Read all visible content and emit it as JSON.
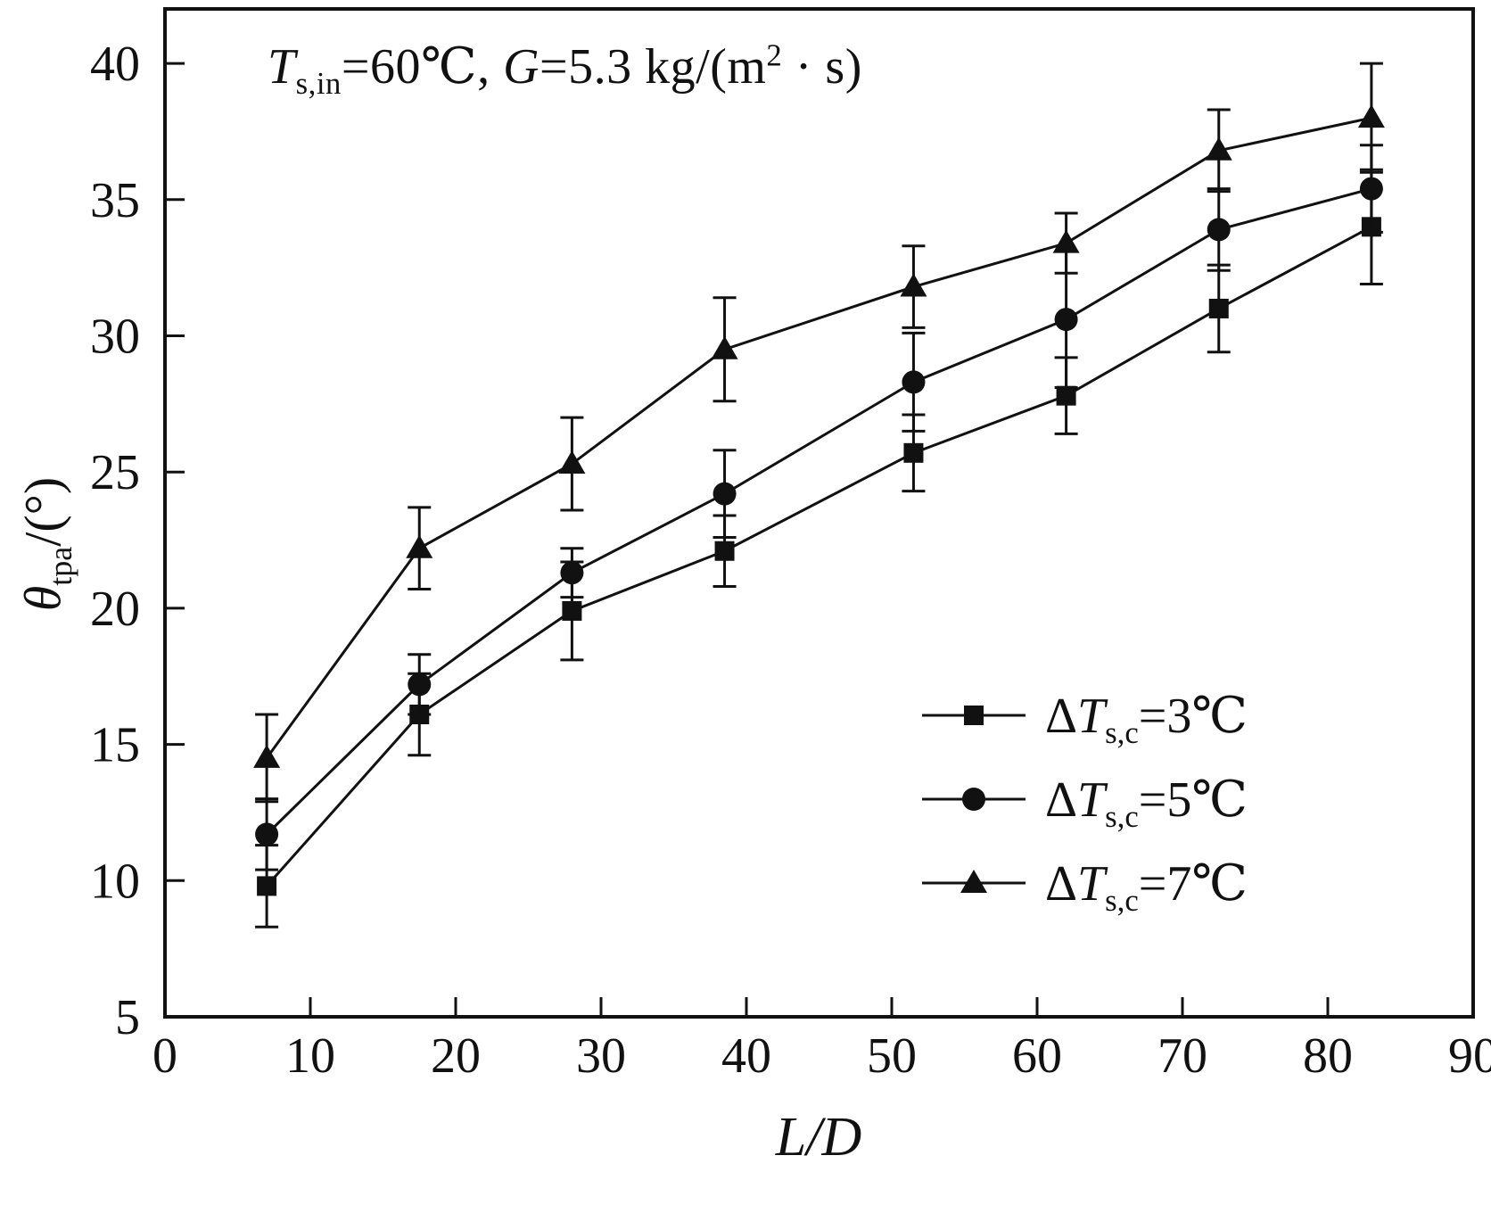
{
  "annotation": {
    "symbol1": "T",
    "sub1": "s,in",
    "mid": "=60℃, ",
    "symbol2": "G",
    "tail": "=5.3 kg/(m",
    "sup": "2",
    "end": " · s)"
  },
  "axes": {
    "y_symbol": "θ",
    "y_sub": "tpa",
    "y_rest": "/(°)",
    "x_label": "L/D"
  },
  "legend": [
    {
      "marker": "square",
      "delta": "Δ",
      "symbol": "T",
      "sub": "s,c",
      "value": "=3℃"
    },
    {
      "marker": "circle",
      "delta": "Δ",
      "symbol": "T",
      "sub": "s,c",
      "value": "=5℃"
    },
    {
      "marker": "triangle",
      "delta": "Δ",
      "symbol": "T",
      "sub": "s,c",
      "value": "=7℃"
    }
  ],
  "chart_data": {
    "type": "line",
    "title": "T_s,in=60℃, G=5.3 kg/(m²·s)",
    "xlabel": "L/D",
    "ylabel": "θ_tpa/(°)",
    "xlim": [
      0,
      90
    ],
    "ylim": [
      5,
      42
    ],
    "xticks": [
      0,
      10,
      20,
      30,
      40,
      50,
      60,
      70,
      80,
      90
    ],
    "yticks": [
      5,
      10,
      15,
      20,
      25,
      30,
      35,
      40
    ],
    "grid": false,
    "legend_position": "lower right",
    "color": "#111111",
    "x": [
      7,
      17.5,
      28,
      38.5,
      51.5,
      62,
      72.5,
      83
    ],
    "series": [
      {
        "name": "ΔT_s,c=3℃",
        "marker": "square",
        "values": [
          9.8,
          16.1,
          19.9,
          22.1,
          25.7,
          27.8,
          31.0,
          34.0
        ],
        "errors": [
          1.5,
          1.5,
          1.8,
          1.3,
          1.4,
          1.4,
          1.6,
          2.1
        ]
      },
      {
        "name": "ΔT_s,c=5℃",
        "marker": "circle",
        "values": [
          11.7,
          17.2,
          21.3,
          24.2,
          28.3,
          30.6,
          33.9,
          35.4
        ],
        "errors": [
          1.3,
          1.1,
          0.9,
          1.6,
          1.8,
          2.5,
          1.5,
          1.6
        ]
      },
      {
        "name": "ΔT_s,c=7℃",
        "marker": "triangle",
        "values": [
          14.5,
          22.2,
          25.3,
          29.5,
          31.8,
          33.4,
          36.8,
          38.0
        ],
        "errors": [
          1.6,
          1.5,
          1.7,
          1.9,
          1.5,
          1.1,
          1.5,
          2.0
        ]
      }
    ]
  }
}
